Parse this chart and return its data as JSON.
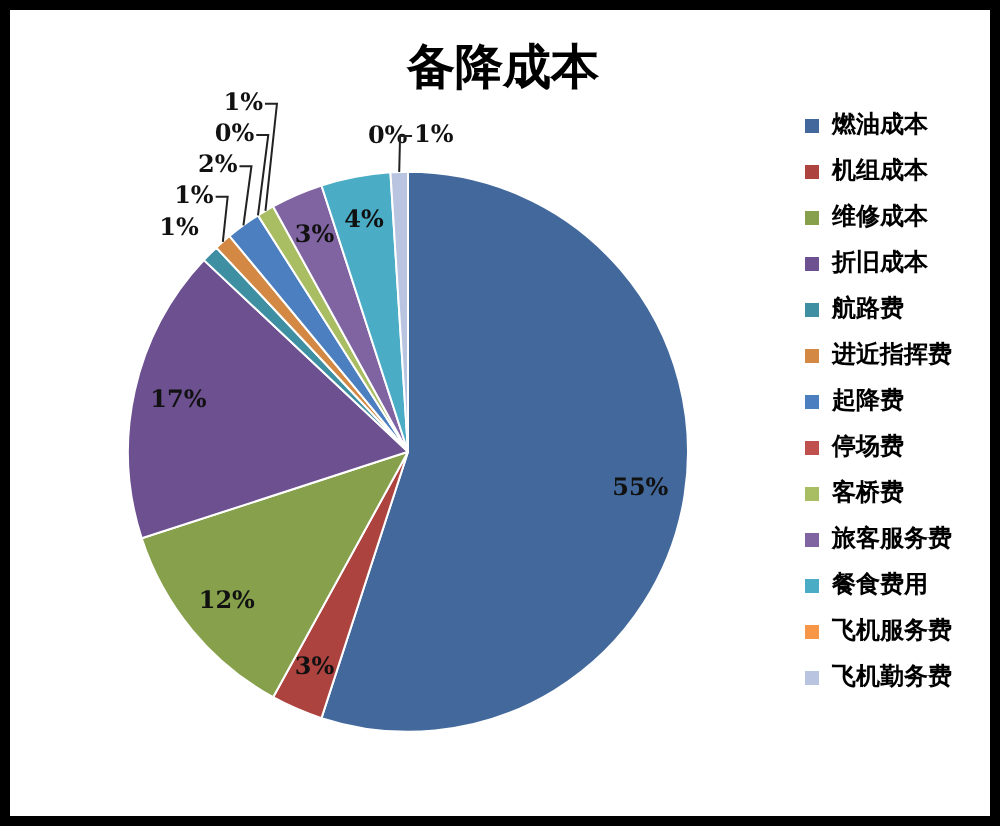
{
  "chart_data": {
    "type": "pie",
    "title": "备降成本",
    "categories": [
      "燃油成本",
      "机组成本",
      "维修成本",
      "折旧成本",
      "航路费",
      "进近指挥费",
      "起降费",
      "停场费",
      "客桥费",
      "旅客服务费",
      "餐食费用",
      "飞机服务费",
      "飞机勤务费"
    ],
    "values": [
      55,
      3,
      12,
      17,
      1,
      1,
      2,
      0,
      1,
      3,
      4,
      0,
      1
    ],
    "value_labels": [
      "55%",
      "3%",
      "12%",
      "17%",
      "1%",
      "1%",
      "2%",
      "0%",
      "1%",
      "3%",
      "4%",
      "0%",
      "1%"
    ],
    "colors": [
      "#43699c",
      "#ad433f",
      "#86a04c",
      "#6c5090",
      "#3f8fa2",
      "#d38844",
      "#4b7fc0",
      "#c0504d",
      "#a9bd63",
      "#8064a2",
      "#4bacc6",
      "#f79646",
      "#b8c4e0"
    ],
    "legend": "right"
  }
}
